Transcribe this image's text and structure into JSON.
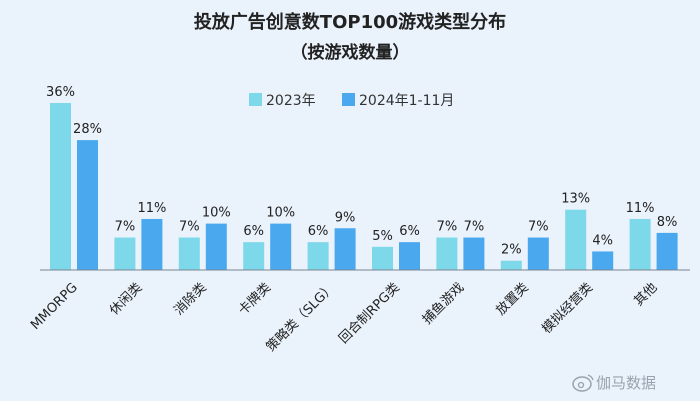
{
  "chart_data": {
    "type": "bar",
    "title": "投放广告创意数TOP100游戏类型分布",
    "subtitle": "（按游戏数量）",
    "categories": [
      "MMORPG",
      "休闲类",
      "消除类",
      "卡牌类",
      "策略类（SLG）",
      "回合制RPG类",
      "捕鱼游戏",
      "放置类",
      "模拟经营类",
      "其他"
    ],
    "series": [
      {
        "name": "2023年",
        "values": [
          36,
          7,
          7,
          6,
          6,
          5,
          7,
          2,
          13,
          11
        ],
        "labels": [
          "36%",
          "7%",
          "7%",
          "6%",
          "6%",
          "5%",
          "7%",
          "2%",
          "13%",
          "11%"
        ],
        "color": "#7dd8ea"
      },
      {
        "name": "2024年1-11月",
        "values": [
          28,
          11,
          10,
          10,
          9,
          6,
          7,
          7,
          4,
          8
        ],
        "labels": [
          "28%",
          "11%",
          "10%",
          "10%",
          "9%",
          "6%",
          "7%",
          "7%",
          "4%",
          "8%"
        ],
        "color": "#4aa8ee"
      }
    ],
    "unit": "%",
    "ylim": [
      0,
      36
    ],
    "legend_position": "top-center",
    "grid": false
  },
  "watermark": {
    "icon": "weibo-icon",
    "text": "伽马数据"
  },
  "colors": {
    "background": "#eaf2fb",
    "baseline": "#7a8590"
  }
}
